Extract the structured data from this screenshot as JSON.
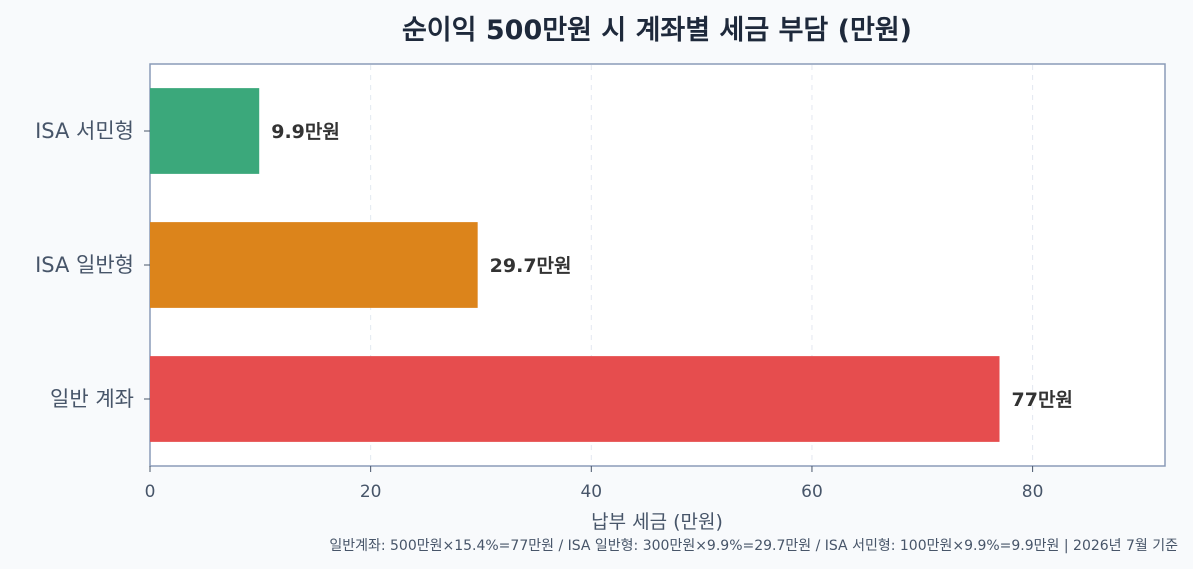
{
  "chart_data": {
    "type": "bar",
    "orientation": "horizontal",
    "title": "순이익 500만원 시 계좌별 세금 부담 (만원)",
    "xlabel": "납부 세금 (만원)",
    "ylabel": "",
    "xlim": [
      0,
      92
    ],
    "xticks": [
      0,
      20,
      40,
      60,
      80
    ],
    "grid": "vertical dashed",
    "categories": [
      "ISA 서민형",
      "ISA 일반형",
      "일반 계좌"
    ],
    "values": [
      9.9,
      29.7,
      77
    ],
    "data_labels": [
      "9.9만원",
      "29.7만원",
      "77만원"
    ],
    "colors": [
      "#3ba87b",
      "#dc841b",
      "#e64d4e"
    ],
    "footnote": "일반계좌: 500만원×15.4%=77만원 / ISA 일반형: 300만원×9.9%=29.7만원 / ISA 서민형: 100만원×9.9%=9.9만원 | 2026년 7월 기준"
  }
}
